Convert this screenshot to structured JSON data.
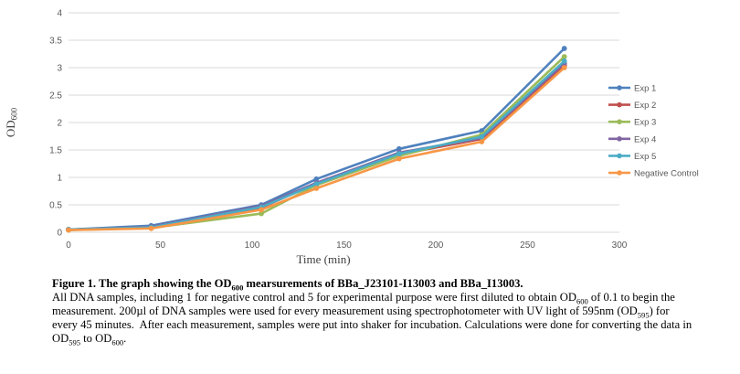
{
  "colors": {
    "background": "#ffffff",
    "gridline": "#d9d9d9",
    "tick_text": "#595959",
    "legend_text": "#595959",
    "caption_text": "#000000"
  },
  "chart": {
    "y_axis_title_segments": [
      {
        "text": "OD"
      },
      {
        "text": "600",
        "sub": true
      }
    ],
    "x_axis_title": "Time (min)"
  },
  "chart_data": {
    "type": "line",
    "title": "",
    "xlabel": "Time (min)",
    "ylabel": "OD600",
    "xlim": [
      0,
      300
    ],
    "ylim": [
      0,
      4
    ],
    "x_ticks": [
      0,
      50,
      100,
      150,
      200,
      250,
      300
    ],
    "y_ticks": [
      0,
      0.5,
      1,
      1.5,
      2,
      2.5,
      3,
      3.5,
      4
    ],
    "grid": "horizontal",
    "legend_position": "right",
    "x": [
      0,
      45,
      105,
      135,
      180,
      225,
      270
    ],
    "series": [
      {
        "name": "Exp 1",
        "color": "#4F81BD",
        "values": [
          0.05,
          0.12,
          0.5,
          0.97,
          1.52,
          1.85,
          3.35
        ]
      },
      {
        "name": "Exp 2",
        "color": "#C0504D",
        "values": [
          0.05,
          0.09,
          0.45,
          0.89,
          1.42,
          1.7,
          3.04
        ]
      },
      {
        "name": "Exp 3",
        "color": "#9BBB59",
        "values": [
          0.04,
          0.08,
          0.34,
          0.86,
          1.39,
          1.78,
          3.2
        ]
      },
      {
        "name": "Exp 4",
        "color": "#8064A2",
        "values": [
          0.05,
          0.1,
          0.48,
          0.9,
          1.45,
          1.72,
          3.08
        ]
      },
      {
        "name": "Exp 5",
        "color": "#4BACC6",
        "values": [
          0.05,
          0.09,
          0.46,
          0.88,
          1.43,
          1.74,
          3.12
        ]
      },
      {
        "name": "Negative Control",
        "color": "#F79646",
        "values": [
          0.04,
          0.07,
          0.41,
          0.8,
          1.34,
          1.65,
          3.0
        ]
      }
    ]
  },
  "caption": {
    "title_segments": [
      {
        "text": "Figure 1. The graph showing the OD"
      },
      {
        "text": "600",
        "sub": true
      },
      {
        "text": " mearsurements of BBa_J23101-I13003 and BBa_I13003."
      }
    ],
    "body_segments": [
      {
        "text": "All DNA samples, including 1 for negative control and 5 for experimental purpose were first diluted to obtain OD"
      },
      {
        "text": "600",
        "sub": true
      },
      {
        "text": " of 0.1 to begin the measurement. 200µl of DNA samples were used for every measurement using spectrophotometer with UV light of 595nm (OD"
      },
      {
        "text": "595",
        "sub": true
      },
      {
        "text": ") for every 45 minutes.  After each measurement, samples were put into shaker for incubation. Calculations were done for converting the data in OD"
      },
      {
        "text": "595",
        "sub": true
      },
      {
        "text": " to OD"
      },
      {
        "text": "600",
        "sub": true
      },
      {
        "text": "."
      }
    ]
  }
}
